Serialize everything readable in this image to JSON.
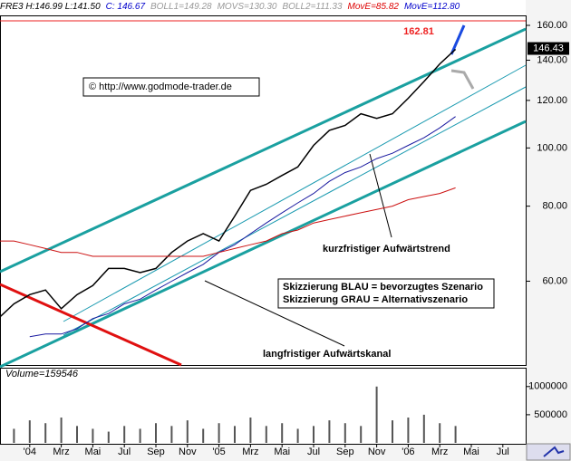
{
  "header": [
    {
      "text": "FRE3 H:146.99 L:141.50",
      "color": "#000000"
    },
    {
      "text": "C: 146.67",
      "color": "#0000cc"
    },
    {
      "text": "BOLL1=149.28",
      "color": "#999999"
    },
    {
      "text": "MOVS=130.30",
      "color": "#999999"
    },
    {
      "text": "BOLL2=111.33",
      "color": "#999999"
    },
    {
      "text": "MovE=85.82",
      "color": "#dd0000"
    },
    {
      "text": "MovE=112.80",
      "color": "#0000cc"
    }
  ],
  "chart_data": [
    {
      "type": "line",
      "log_scale": true,
      "categories": [
        null,
        null,
        "'04",
        null,
        "Mrz",
        null,
        "Mai",
        null,
        "Jul",
        null,
        "Sep",
        null,
        "Nov",
        null,
        "'05",
        null,
        "Mrz",
        null,
        "Mai",
        null,
        "Jul",
        null,
        "Sep",
        null,
        "Nov",
        null,
        "'06",
        null,
        "Mrz",
        null,
        "Mai",
        null,
        "Jul",
        null
      ],
      "series": [
        {
          "color": "#000000",
          "values": [
            52,
            55,
            57,
            58,
            54,
            57,
            59,
            63,
            63,
            62,
            63,
            67,
            70,
            72,
            70,
            77,
            85,
            87,
            90,
            93,
            101,
            107,
            109,
            114,
            112,
            114,
            121,
            129,
            138,
            146,
            null,
            null,
            null,
            null
          ]
        },
        {
          "color": "#1a1aa0",
          "values": [
            null,
            null,
            48.5,
            49,
            49,
            50,
            52,
            53,
            55,
            56,
            58,
            60,
            62,
            64,
            67,
            69,
            72,
            75,
            78,
            81,
            84,
            88,
            91,
            93,
            96,
            98,
            101,
            104,
            108,
            112.8,
            null,
            null,
            null,
            null
          ]
        },
        {
          "color": "#cc1111",
          "values": [
            70,
            70,
            69,
            68,
            67,
            67,
            66,
            66,
            66,
            66,
            66,
            66,
            66,
            66,
            67,
            68,
            69,
            70,
            72,
            73,
            75,
            76,
            77,
            78,
            79,
            80,
            82,
            83,
            84,
            85.82,
            null,
            null,
            null,
            null
          ]
        }
      ],
      "ylim": [
        43.5,
        165.7
      ],
      "yticks": [
        {
          "value": 60,
          "label": "60.00"
        },
        {
          "value": 80,
          "label": "80.00"
        },
        {
          "value": 100,
          "label": "100.00"
        },
        {
          "value": 120,
          "label": "120.00"
        },
        {
          "value": 140,
          "label": "140.00"
        },
        {
          "value": 160,
          "label": "160.00"
        }
      ],
      "hline": 162.81,
      "hline_color": "#ee2222",
      "last_price": 146.43,
      "annotations": [
        "© http://www.godmode-trader.de",
        "kurzfristiger Aufwärtstrend",
        "Skizzierung BLAU = bevorzugtes Szenario",
        "Skizzierung GRAU = Alternativszenario",
        "langfristiger Aufwärtskanal"
      ]
    },
    {
      "type": "bar",
      "title": "Volume=159546",
      "color": "#555555",
      "values": [
        300000,
        250000,
        400000,
        350000,
        450000,
        300000,
        250000,
        200000,
        300000,
        250000,
        350000,
        300000,
        400000,
        250000,
        350000,
        300000,
        450000,
        300000,
        350000,
        250000,
        300000,
        400000,
        350000,
        300000,
        1000000,
        400000,
        450000,
        500000,
        350000,
        300000,
        null,
        null,
        null,
        null
      ],
      "ylim": [
        0,
        1270000
      ],
      "yticks": [
        500000,
        1000000
      ]
    }
  ]
}
